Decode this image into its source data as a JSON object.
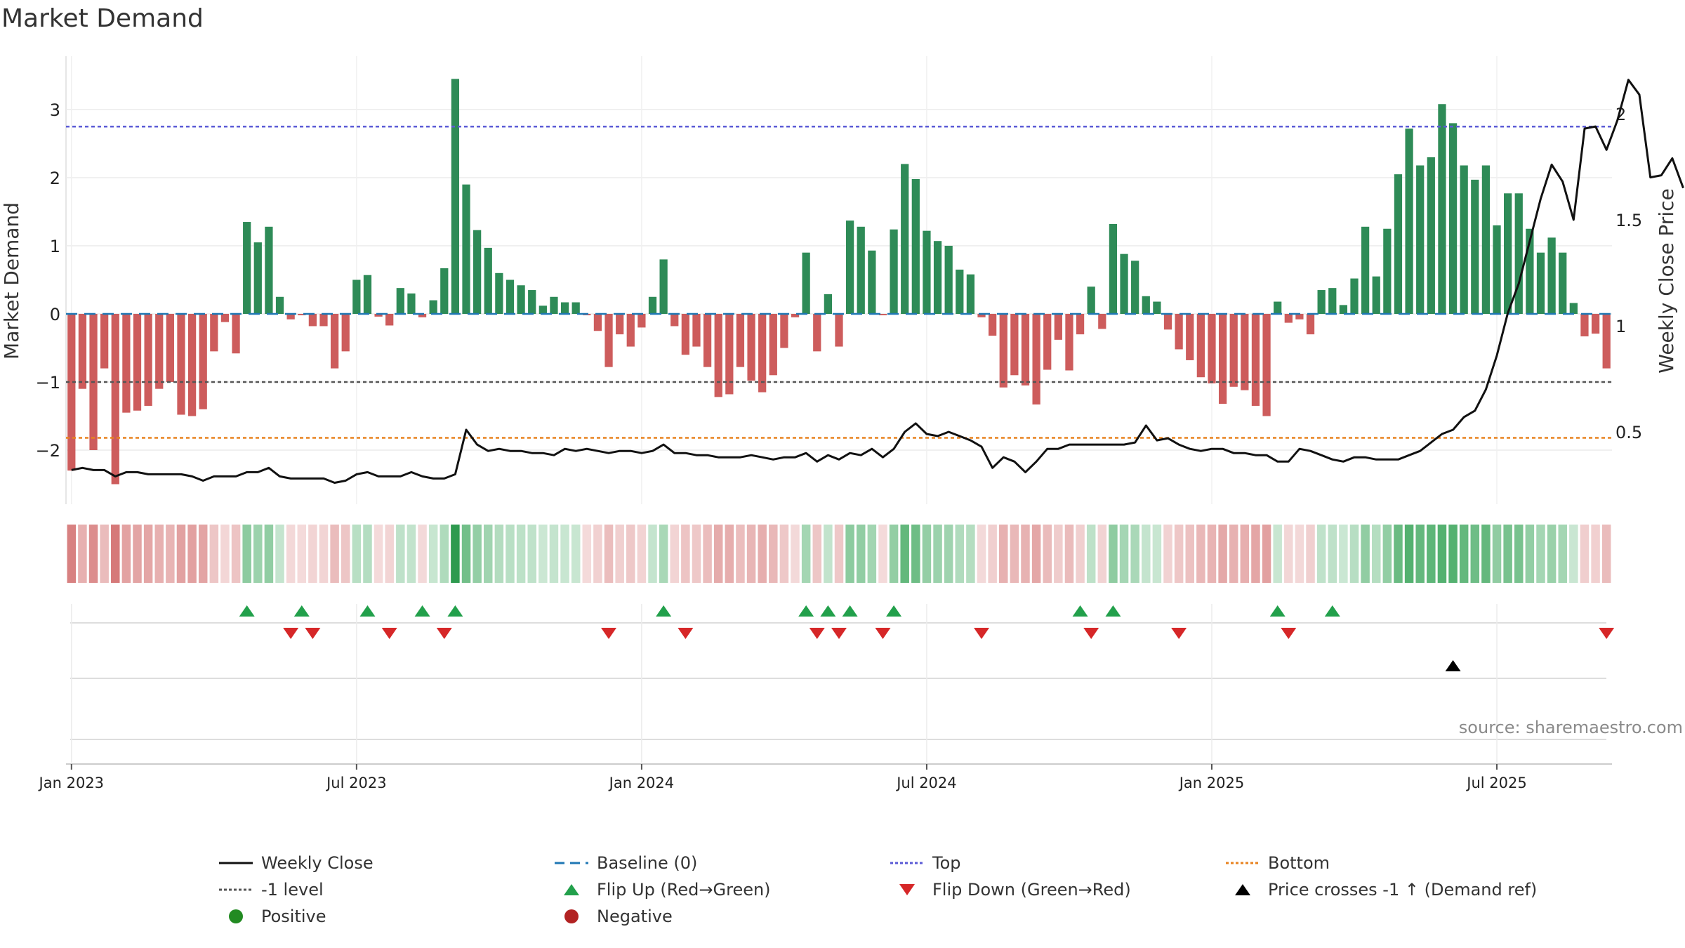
{
  "chart_data": {
    "type": "bar",
    "title": "Market Demand",
    "ylabel": "Market Demand",
    "y2label": "Weekly Close Price",
    "ylim": [
      -2.8,
      3.8
    ],
    "y2lim": [
      0.1,
      2.3
    ],
    "yticks": [
      {
        "value": 3,
        "label": "3"
      },
      {
        "value": 2,
        "label": "2"
      },
      {
        "value": 1,
        "label": "1"
      },
      {
        "value": 0,
        "label": "0"
      },
      {
        "value": -1,
        "label": "−1"
      },
      {
        "value": -2,
        "label": "−2"
      }
    ],
    "y2ticks": [
      {
        "value": 2,
        "label": "2"
      },
      {
        "value": 1.5,
        "label": "1.5"
      },
      {
        "value": 1,
        "label": "1"
      },
      {
        "value": 0.5,
        "label": "0.5"
      }
    ],
    "xticks": [
      {
        "week": 1,
        "label": "Jan 2023"
      },
      {
        "week": 27,
        "label": "Jul 2023"
      },
      {
        "week": 53,
        "label": "Jan 2024"
      },
      {
        "week": 79,
        "label": "Jul 2024"
      },
      {
        "week": 105,
        "label": "Jan 2025"
      },
      {
        "week": 131,
        "label": "Jul 2025"
      }
    ],
    "reference_lines": {
      "top": 2.75,
      "minus_one": -1,
      "bottom": -1.82,
      "baseline": 0
    },
    "colors": {
      "positive": "#2e8b57",
      "negative": "#cd5c5c",
      "close": "#111111",
      "top": "#5b5bd6",
      "minus_one": "#555555",
      "bottom": "#e8821e",
      "baseline": "#1f77b4",
      "flip_up": "#22a04b",
      "flip_down": "#d62728",
      "cross": "#000000",
      "legend_positive": "#228b22",
      "legend_negative": "#b22222"
    },
    "demand": [
      -2.3,
      -1.1,
      -2.0,
      -0.8,
      -2.5,
      -1.45,
      -1.42,
      -1.35,
      -1.1,
      -1.0,
      -1.48,
      -1.5,
      -1.4,
      -0.55,
      -0.12,
      -0.58,
      1.35,
      1.05,
      1.28,
      0.25,
      -0.08,
      -0.02,
      -0.18,
      -0.18,
      -0.8,
      -0.55,
      0.5,
      0.57,
      -0.04,
      -0.17,
      0.38,
      0.3,
      -0.05,
      0.2,
      0.67,
      3.45,
      1.9,
      1.23,
      0.97,
      0.6,
      0.5,
      0.42,
      0.35,
      0.12,
      0.25,
      0.17,
      0.17,
      -0.02,
      -0.25,
      -0.78,
      -0.3,
      -0.48,
      -0.2,
      0.25,
      0.8,
      -0.18,
      -0.6,
      -0.48,
      -0.78,
      -1.22,
      -1.18,
      -0.78,
      -0.98,
      -1.15,
      -0.9,
      -0.5,
      -0.05,
      0.9,
      -0.55,
      0.29,
      -0.48,
      1.37,
      1.28,
      0.93,
      -0.02,
      1.24,
      2.2,
      1.98,
      1.22,
      1.07,
      1.0,
      0.65,
      0.58,
      -0.05,
      -0.32,
      -1.08,
      -0.9,
      -1.05,
      -1.33,
      -0.82,
      -0.38,
      -0.83,
      -0.3,
      0.4,
      -0.22,
      1.32,
      0.88,
      0.78,
      0.26,
      0.18,
      -0.23,
      -0.52,
      -0.68,
      -0.93,
      -1.02,
      -1.32,
      -1.07,
      -1.12,
      -1.35,
      -1.5,
      0.18,
      -0.13,
      -0.08,
      -0.3,
      0.35,
      0.38,
      0.13,
      0.52,
      1.28,
      0.55,
      1.25,
      2.05,
      2.72,
      2.18,
      2.3,
      3.08,
      2.8,
      2.18,
      1.97,
      2.18,
      1.3,
      1.77,
      1.77,
      1.25,
      0.9,
      1.12,
      0.9,
      0.16,
      -0.33,
      -0.29,
      -0.8
    ],
    "close": [
      0.32,
      0.33,
      0.32,
      0.32,
      0.29,
      0.31,
      0.31,
      0.3,
      0.3,
      0.3,
      0.3,
      0.29,
      0.27,
      0.29,
      0.29,
      0.29,
      0.31,
      0.31,
      0.33,
      0.29,
      0.28,
      0.28,
      0.28,
      0.28,
      0.26,
      0.27,
      0.3,
      0.31,
      0.29,
      0.29,
      0.29,
      0.31,
      0.29,
      0.28,
      0.28,
      0.3,
      0.51,
      0.44,
      0.41,
      0.42,
      0.41,
      0.41,
      0.4,
      0.4,
      0.39,
      0.42,
      0.41,
      0.42,
      0.41,
      0.4,
      0.41,
      0.41,
      0.4,
      0.41,
      0.44,
      0.4,
      0.4,
      0.39,
      0.39,
      0.38,
      0.38,
      0.38,
      0.39,
      0.38,
      0.37,
      0.38,
      0.38,
      0.4,
      0.36,
      0.39,
      0.37,
      0.4,
      0.39,
      0.42,
      0.38,
      0.42,
      0.5,
      0.54,
      0.49,
      0.48,
      0.5,
      0.48,
      0.46,
      0.43,
      0.33,
      0.38,
      0.36,
      0.31,
      0.36,
      0.42,
      0.42,
      0.44,
      0.44,
      0.44,
      0.44,
      0.44,
      0.44,
      0.45,
      0.53,
      0.46,
      0.47,
      0.44,
      0.42,
      0.41,
      0.42,
      0.42,
      0.4,
      0.4,
      0.39,
      0.39,
      0.36,
      0.36,
      0.42,
      0.41,
      0.39,
      0.37,
      0.36,
      0.38,
      0.38,
      0.37,
      0.37,
      0.37,
      0.39,
      0.41,
      0.45,
      0.49,
      0.51,
      0.57,
      0.6,
      0.7,
      0.86,
      1.06,
      1.2,
      1.4,
      1.6,
      1.76,
      1.68,
      1.5,
      1.93,
      1.94,
      1.83,
      1.97,
      2.16,
      2.09,
      1.7,
      1.71,
      1.79,
      1.65
    ],
    "flip_up_weeks": [
      17,
      22,
      28,
      33,
      36,
      55,
      68,
      70,
      72,
      76,
      93,
      96,
      111,
      116
    ],
    "flip_down_weeks": [
      21,
      23,
      30,
      35,
      50,
      57,
      69,
      71,
      75,
      84,
      94,
      102,
      112,
      141
    ],
    "cross_weeks": [
      127
    ],
    "source": "source: sharemaestro.com",
    "legend": [
      {
        "key": "close",
        "label": "Weekly Close"
      },
      {
        "key": "baseline",
        "label": "Baseline (0)"
      },
      {
        "key": "top",
        "label": "Top"
      },
      {
        "key": "bottom",
        "label": "Bottom"
      },
      {
        "key": "minus_one",
        "label": "-1 level"
      },
      {
        "key": "flip_up",
        "label": "Flip Up (Red→Green)"
      },
      {
        "key": "flip_down",
        "label": "Flip Down (Green→Red)"
      },
      {
        "key": "cross",
        "label": "Price crosses -1 ↑ (Demand ref)"
      },
      {
        "key": "positive",
        "label": "Positive"
      },
      {
        "key": "negative",
        "label": "Negative"
      }
    ]
  }
}
